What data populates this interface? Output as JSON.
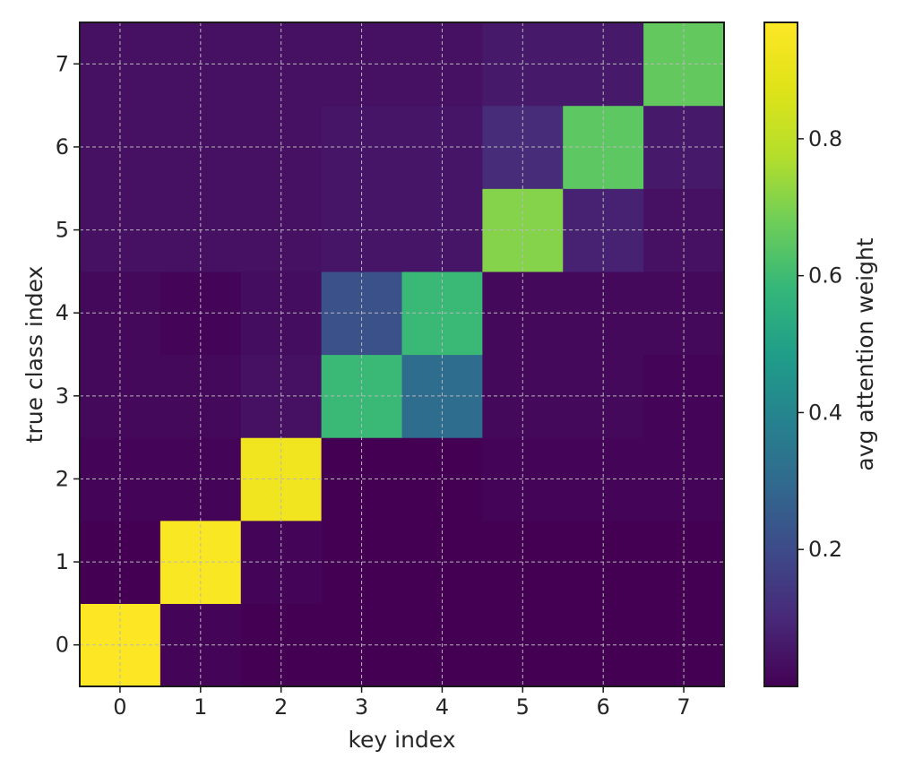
{
  "chart_data": {
    "type": "heatmap",
    "title": "",
    "xlabel": "key index",
    "ylabel": "true class index",
    "x_categories": [
      "0",
      "1",
      "2",
      "3",
      "4",
      "5",
      "6",
      "7"
    ],
    "y_categories": [
      "0",
      "1",
      "2",
      "3",
      "4",
      "5",
      "6",
      "7"
    ],
    "y_order": "bottom-to-top",
    "grid": true,
    "colormap": "viridis",
    "colorbar": {
      "label": "avg attention weight",
      "range": [
        0.0,
        0.97
      ],
      "ticks": [
        "0.2",
        "0.4",
        "0.6",
        "0.8"
      ],
      "tick_values": [
        0.2,
        0.4,
        0.6,
        0.8
      ]
    },
    "values": [
      [
        0.97,
        0.01,
        0.0,
        0.0,
        0.0,
        0.0,
        0.0,
        0.0
      ],
      [
        0.0,
        0.96,
        0.01,
        0.0,
        0.0,
        0.0,
        0.0,
        0.0
      ],
      [
        0.01,
        0.01,
        0.93,
        0.0,
        0.0,
        0.01,
        0.01,
        0.01
      ],
      [
        0.02,
        0.02,
        0.04,
        0.59,
        0.31,
        0.02,
        0.02,
        0.01
      ],
      [
        0.02,
        0.01,
        0.03,
        0.22,
        0.59,
        0.02,
        0.02,
        0.02
      ],
      [
        0.04,
        0.04,
        0.04,
        0.05,
        0.05,
        0.71,
        0.08,
        0.04
      ],
      [
        0.04,
        0.04,
        0.04,
        0.05,
        0.05,
        0.11,
        0.65,
        0.06
      ],
      [
        0.04,
        0.04,
        0.04,
        0.04,
        0.04,
        0.06,
        0.06,
        0.66
      ]
    ]
  }
}
